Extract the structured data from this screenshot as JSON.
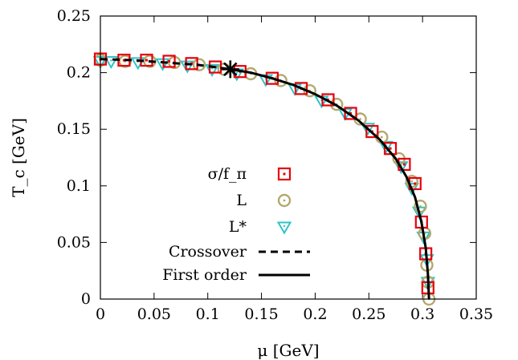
{
  "chart_data": {
    "type": "scatter",
    "xlabel": "μ [GeV]",
    "ylabel": "T_c [GeV]",
    "xlim": [
      0,
      0.35
    ],
    "ylim": [
      0,
      0.25
    ],
    "xticks": [
      0,
      0.05,
      0.1,
      0.15,
      0.2,
      0.25,
      0.3,
      0.35
    ],
    "xtick_labels": [
      "0",
      "0.05",
      "0.1",
      "0.15",
      "0.2",
      "0.25",
      "0.3",
      "0.35"
    ],
    "yticks": [
      0,
      0.05,
      0.1,
      0.15,
      0.2,
      0.25
    ],
    "ytick_labels": [
      "0",
      "0.05",
      "0.1",
      "0.15",
      "0.2",
      "0.25"
    ],
    "grid": false,
    "legend_position": "left-center",
    "critical_point": {
      "x": 0.121,
      "y": 0.203
    },
    "series": [
      {
        "name": "σ/f_π",
        "marker": "square",
        "color": "#e8000b",
        "x": [
          0.0,
          0.022,
          0.043,
          0.064,
          0.085,
          0.107,
          0.13,
          0.16,
          0.187,
          0.212,
          0.233,
          0.253,
          0.27,
          0.283,
          0.293,
          0.299,
          0.303,
          0.305
        ],
        "y": [
          0.212,
          0.211,
          0.211,
          0.21,
          0.208,
          0.205,
          0.201,
          0.195,
          0.186,
          0.176,
          0.164,
          0.148,
          0.133,
          0.119,
          0.102,
          0.068,
          0.04,
          0.01
        ]
      },
      {
        "name": "L",
        "marker": "circle",
        "color": "#b3a96e",
        "x": [
          0.0,
          0.023,
          0.046,
          0.069,
          0.092,
          0.115,
          0.14,
          0.168,
          0.195,
          0.22,
          0.242,
          0.262,
          0.278,
          0.29,
          0.298,
          0.302,
          0.304,
          0.305,
          0.306
        ],
        "y": [
          0.211,
          0.21,
          0.21,
          0.209,
          0.207,
          0.203,
          0.199,
          0.193,
          0.184,
          0.172,
          0.159,
          0.143,
          0.124,
          0.104,
          0.082,
          0.058,
          0.03,
          0.015,
          0.0
        ]
      },
      {
        "name": "L*",
        "marker": "triangle-down",
        "color": "#2ec4c9",
        "x": [
          0.0,
          0.01,
          0.035,
          0.058,
          0.081,
          0.104,
          0.127,
          0.154,
          0.181,
          0.206,
          0.228,
          0.249,
          0.266,
          0.28,
          0.29,
          0.297,
          0.301,
          0.304,
          0.305
        ],
        "y": [
          0.21,
          0.21,
          0.209,
          0.208,
          0.206,
          0.203,
          0.199,
          0.194,
          0.186,
          0.175,
          0.164,
          0.151,
          0.135,
          0.117,
          0.098,
          0.077,
          0.055,
          0.035,
          0.015
        ]
      },
      {
        "name": "Crossover",
        "style": "dashed",
        "color": "#000000",
        "x": [
          0.0,
          0.03,
          0.06,
          0.09,
          0.121
        ],
        "y": [
          0.212,
          0.211,
          0.209,
          0.207,
          0.203
        ]
      },
      {
        "name": "First order",
        "style": "solid",
        "color": "#000000",
        "x": [
          0.121,
          0.14,
          0.16,
          0.18,
          0.2,
          0.22,
          0.24,
          0.26,
          0.275,
          0.285,
          0.293,
          0.299,
          0.303,
          0.305,
          0.306
        ],
        "y": [
          0.203,
          0.2,
          0.195,
          0.189,
          0.181,
          0.171,
          0.158,
          0.141,
          0.124,
          0.108,
          0.09,
          0.068,
          0.045,
          0.022,
          0.0
        ]
      }
    ]
  }
}
